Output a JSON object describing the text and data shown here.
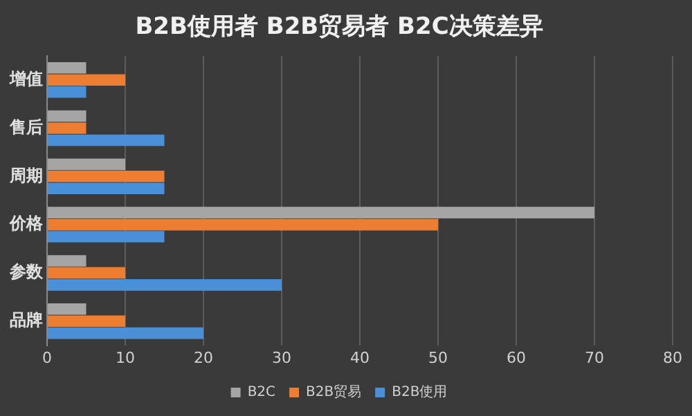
{
  "chart_data": {
    "type": "bar",
    "orientation": "horizontal",
    "title": "B2B使用者 B2B贸易者 B2C决策差异",
    "categories": [
      "增值",
      "售后",
      "周期",
      "价格",
      "参数",
      "品牌"
    ],
    "series": [
      {
        "name": "B2C",
        "color": "#a5a5a5",
        "values": [
          5,
          5,
          10,
          70,
          5,
          5
        ]
      },
      {
        "name": "B2B贸易",
        "color": "#ed7d31",
        "values": [
          10,
          5,
          15,
          50,
          10,
          10
        ]
      },
      {
        "name": "B2B使用",
        "color": "#4a90d9",
        "values": [
          5,
          15,
          15,
          15,
          30,
          20
        ]
      }
    ],
    "xlim": [
      0,
      80
    ],
    "xticks": [
      0,
      10,
      20,
      30,
      40,
      50,
      60,
      70,
      80
    ],
    "grid": "x",
    "legend": "bottom"
  }
}
